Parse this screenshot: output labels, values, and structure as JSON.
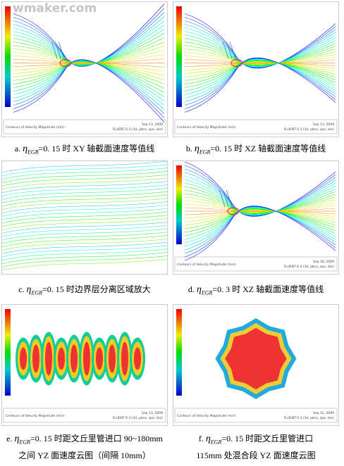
{
  "watermark": "wmaker.com",
  "panels": [
    {
      "label": "a.",
      "symbol": "η",
      "subscript": "EGR",
      "caption": "=0. 15 时 XY 轴截面速度等值线",
      "footer_left": "Contours of Velocity Magnitude (m/s)",
      "footer_date": "Sep 13, 2009",
      "footer_solver": "FLUENT 6.3 (3d, pbns, spe, ske)"
    },
    {
      "label": "b.",
      "symbol": "η",
      "subscript": "EGR",
      "caption": "=0. 15 时 XZ 轴截面速度等值线",
      "footer_left": "Contours of Velocity Magnitude (m/s)",
      "footer_date": "Sep 13, 2009",
      "footer_solver": "FLUENT 6.3 (3d, pbns, spe, ske)"
    },
    {
      "label": "c.",
      "symbol": "η",
      "subscript": "EGR",
      "caption": "=0. 15 时边界层分离区域放大"
    },
    {
      "label": "d.",
      "symbol": "η",
      "subscript": "EGR",
      "caption": "=0. 3 时 XZ 轴截面速度等值线",
      "footer_left": "Contours of Velocity Magnitude (m/s)",
      "footer_date": "Sep 18, 2009",
      "footer_solver": "FLUENT 6.3 (3d, pbns, spe, ske)"
    },
    {
      "label": "e.",
      "symbol": "η",
      "subscript": "EGR",
      "caption": "=0. 15 时距文丘里管进口 90~180mm",
      "caption2": "之间 YZ 面速度云图（间隔 10mm）",
      "footer_left": "Contours of Velocity Magnitude (m/s)",
      "footer_date": "Sep 13, 2009",
      "footer_solver": "FLUENT 6.3 (3d, pbns, spe, ske)"
    },
    {
      "label": "f.",
      "symbol": "η",
      "subscript": "EGR",
      "caption": "=0. 15 时距文丘里管进口",
      "caption2": "115mm 处混合段 YZ 面速度云图",
      "footer_left": "Contours of Velocity Magnitude (m/s)",
      "footer_date": "Sep 15, 2009",
      "footer_solver": "FLUENT 6.3 (3d, pbns, spe, ske)"
    }
  ]
}
